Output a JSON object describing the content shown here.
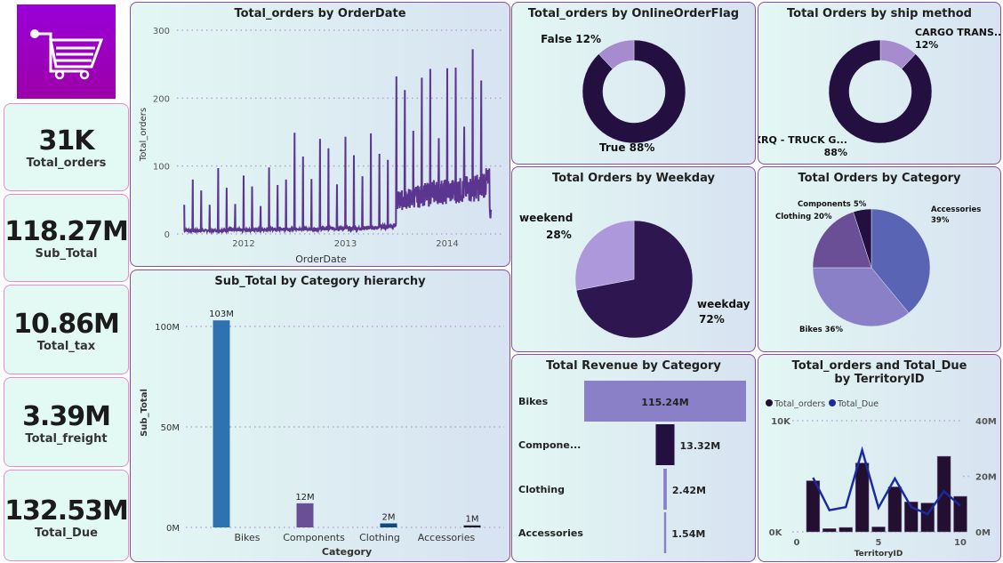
{
  "logo": {
    "icon": "shopping-cart-icon",
    "color": "#9a00c8"
  },
  "kpis": [
    {
      "value": "31K",
      "label": "Total_orders"
    },
    {
      "value": "118.27M",
      "label": "Sub_Total"
    },
    {
      "value": "10.86M",
      "label": "Total_tax"
    },
    {
      "value": "3.39M",
      "label": "Total_freight"
    },
    {
      "value": "132.53M",
      "label": "Total_Due"
    }
  ],
  "chart_data": [
    {
      "id": "orders_by_date",
      "type": "line",
      "title": "Total_orders by OrderDate",
      "xlabel": "OrderDate",
      "ylabel": "Total_orders",
      "ylim": [
        0,
        300
      ],
      "yticks": [
        "0",
        "100",
        "200",
        "300"
      ],
      "xticks": [
        "2012",
        "2013",
        "2014"
      ],
      "grid": true,
      "color": "#5b3590",
      "months": [
        "2011-06",
        "2011-07",
        "2011-08",
        "2011-09",
        "2011-10",
        "2011-11",
        "2011-12",
        "2012-01",
        "2012-02",
        "2012-03",
        "2012-04",
        "2012-05",
        "2012-06",
        "2012-07",
        "2012-08",
        "2012-09",
        "2012-10",
        "2012-11",
        "2012-12",
        "2013-01",
        "2013-02",
        "2013-03",
        "2013-04",
        "2013-05",
        "2013-06",
        "2013-07",
        "2013-08",
        "2013-09",
        "2013-10",
        "2013-11",
        "2013-12",
        "2014-01",
        "2014-02",
        "2014-03",
        "2014-04",
        "2014-05",
        "2014-06"
      ],
      "monthly_peak": [
        43,
        80,
        64,
        43,
        97,
        68,
        44,
        86,
        70,
        41,
        98,
        72,
        80,
        149,
        114,
        81,
        140,
        126,
        73,
        143,
        116,
        85,
        148,
        118,
        109,
        232,
        212,
        152,
        230,
        243,
        141,
        244,
        245,
        158,
        272,
        226,
        40
      ],
      "daily_baseline": [
        5,
        5,
        5,
        5,
        5,
        6,
        6,
        6,
        6,
        6,
        7,
        7,
        7,
        7,
        7,
        7,
        8,
        8,
        8,
        8,
        8,
        9,
        9,
        10,
        12,
        50,
        52,
        55,
        58,
        62,
        62,
        63,
        64,
        66,
        68,
        75,
        30
      ]
    },
    {
      "id": "subtotal_by_category",
      "type": "bar",
      "title": "Sub_Total by Category hierarchy",
      "xlabel": "Category",
      "ylabel": "Sub_Total",
      "categories": [
        "Bikes",
        "Components",
        "Clothing",
        "Accessories"
      ],
      "values": [
        103,
        12,
        2,
        1
      ],
      "unit": "M",
      "data_labels": [
        "103M",
        "12M",
        "2M",
        "1M"
      ],
      "ylim": [
        0,
        110
      ],
      "yticks": [
        "0M",
        "50M",
        "100M"
      ],
      "colors": [
        "#2e72b0",
        "#6b4f96",
        "#0f4a7c",
        "#1a1a2a"
      ]
    },
    {
      "id": "orders_by_online_flag",
      "type": "pie",
      "donut": true,
      "title": "Total_orders by OnlineOrderFlag",
      "slices": [
        {
          "label": "True",
          "value": 88,
          "text": "True 88%",
          "color": "#231040"
        },
        {
          "label": "False",
          "value": 12,
          "text": "False 12%",
          "color": "#a68bcf"
        }
      ]
    },
    {
      "id": "orders_by_ship_method",
      "type": "pie",
      "donut": true,
      "title": "Total Orders by ship method",
      "slices": [
        {
          "label": "CARGO TRANS...",
          "value": 12,
          "text": "12%",
          "color": "#a68bcf"
        },
        {
          "label": "XRQ - TRUCK G...",
          "value": 88,
          "text": "88%",
          "color": "#231040"
        }
      ]
    },
    {
      "id": "orders_by_weekday",
      "type": "pie",
      "title": "Total Orders by Weekday",
      "slices": [
        {
          "label": "weekday",
          "value": 72,
          "text": "72%",
          "color": "#2e1650"
        },
        {
          "label": "weekend",
          "value": 28,
          "text": "28%",
          "color": "#ad98dc"
        }
      ]
    },
    {
      "id": "orders_by_category",
      "type": "pie",
      "title": "Total Orders by Category",
      "slices": [
        {
          "label": "Accessories",
          "value": 39,
          "text": "39%",
          "color": "#5a64b4"
        },
        {
          "label": "Bikes",
          "value": 36,
          "text": "36%",
          "color": "#8a80c8"
        },
        {
          "label": "Clothing",
          "value": 20,
          "text": "20%",
          "color": "#6b4f96"
        },
        {
          "label": "Components",
          "value": 5,
          "text": "5%",
          "color": "#231040"
        }
      ]
    },
    {
      "id": "revenue_by_category",
      "type": "bar",
      "orientation": "horizontal",
      "title": "Total Revenue by Category",
      "categories": [
        "Bikes",
        "Compone...",
        "Clothing",
        "Accessories"
      ],
      "values": [
        115.24,
        13.32,
        2.42,
        1.54
      ],
      "data_labels": [
        "115.24M",
        "13.32M",
        "2.42M",
        "1.54M"
      ],
      "colors": [
        "#8a80c8",
        "#231040",
        "#8a80c8",
        "#5a64b4"
      ]
    },
    {
      "id": "orders_due_by_territory",
      "type": "bar+line",
      "title": "Total_orders and Total_Due by TerritoryID",
      "xlabel": "TerritoryID",
      "x": [
        1,
        2,
        3,
        4,
        5,
        6,
        7,
        8,
        9,
        10
      ],
      "xticks": [
        "0",
        "5",
        "10"
      ],
      "series": [
        {
          "name": "Total_orders",
          "type": "bar",
          "axis": "left",
          "values": [
            4600,
            300,
            400,
            6200,
            450,
            4050,
            2700,
            2600,
            6800,
            3200
          ],
          "color": "#231030"
        },
        {
          "name": "Total_Due",
          "type": "line",
          "axis": "right",
          "values": [
            19.5,
            7.8,
            8.9,
            29.4,
            8.7,
            19.2,
            8.9,
            6.4,
            14.6,
            9.4
          ],
          "color": "#1a2aa0"
        }
      ],
      "left_ylim": [
        0,
        10000
      ],
      "left_yticks": [
        "0K",
        "10K"
      ],
      "right_ylim": [
        0,
        40
      ],
      "right_yticks": [
        "0M",
        "20M",
        "40M"
      ],
      "legend": "top-left"
    }
  ]
}
